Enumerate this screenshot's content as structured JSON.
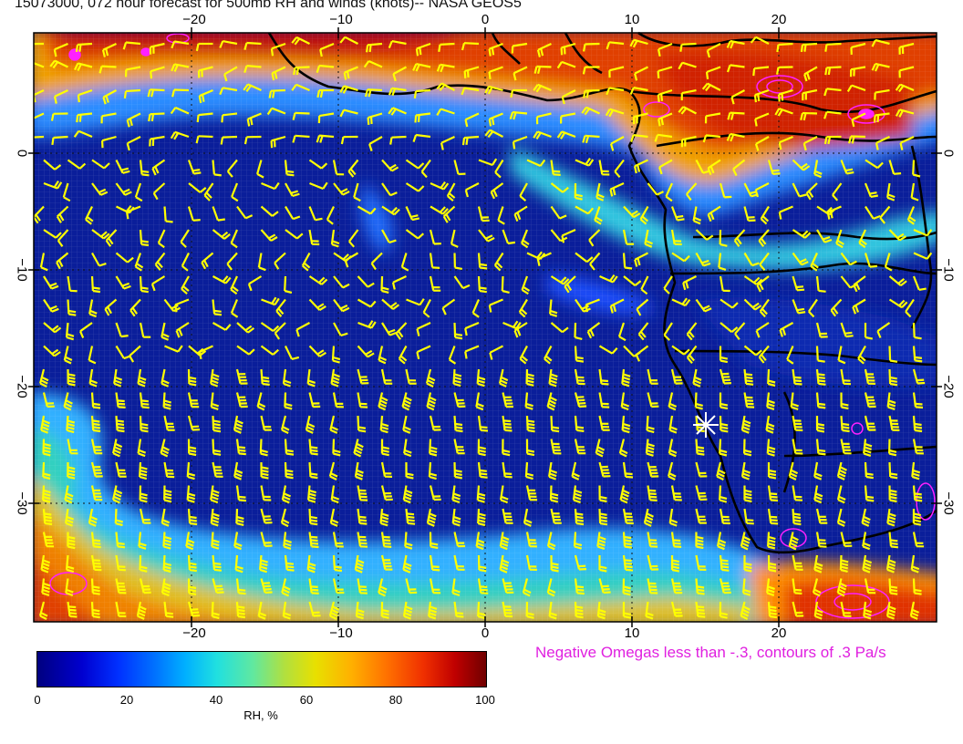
{
  "title": "15073000, 072 hour forecast for 500mb RH and winds (knots)-- NASA GEOS5",
  "axes": {
    "lon_ticks_top": [
      "−20",
      "−10",
      "0",
      "10",
      "20"
    ],
    "lon_ticks_bottom": [
      "−20",
      "−10",
      "0",
      "10",
      "20"
    ],
    "lat_ticks_left": [
      "0",
      "−10",
      "−20",
      "−30"
    ],
    "lat_ticks_right": [
      "0",
      "−10",
      "−20",
      "−30"
    ],
    "lon_range": [
      -30,
      30
    ],
    "lat_range": [
      -40,
      10
    ]
  },
  "colorbar": {
    "label": "RH, %",
    "ticks": [
      "0",
      "20",
      "40",
      "60",
      "80",
      "100"
    ],
    "range": [
      0,
      100
    ]
  },
  "omega_note": "Negative Omegas less than -.3, contours of .3 Pa/s",
  "colors": {
    "wind_barbs": "#ffff00",
    "omega_contours": "#ff20ff",
    "coastlines": "#000000",
    "marker": "#ffffff"
  },
  "marker_icon": "asterisk-marker-icon"
}
